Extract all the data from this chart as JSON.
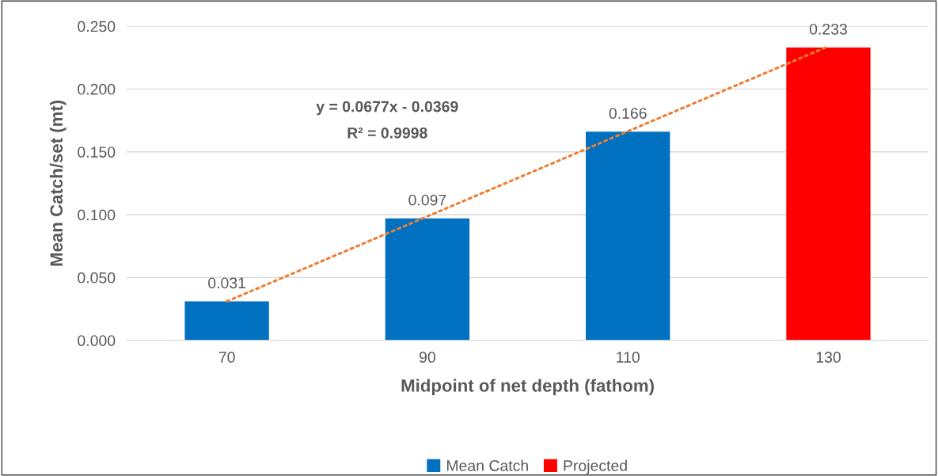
{
  "chart_data": {
    "type": "bar",
    "xlabel": "Midpoint of net depth (fathom)",
    "ylabel": "Mean Catch/set (mt)",
    "categories": [
      "70",
      "90",
      "110",
      "130"
    ],
    "series": [
      {
        "name": "Mean Catch",
        "color": "#0070c0",
        "values": [
          0.031,
          0.097,
          0.166,
          null
        ],
        "value_labels": [
          "0.031",
          "0.097",
          "0.166",
          null
        ]
      },
      {
        "name": "Projected",
        "color": "#ff0000",
        "values": [
          null,
          null,
          null,
          0.233
        ],
        "value_labels": [
          null,
          null,
          null,
          "0.233"
        ]
      },
      {
        "type": "line",
        "color": "#ed7d31",
        "line_style": "dotted",
        "x": [
          "70",
          "130"
        ],
        "values": [
          0.031,
          0.234
        ]
      }
    ],
    "annotations": [
      "y = 0.0677x - 0.0369",
      "R² = 0.9998"
    ],
    "ylim": [
      0,
      0.25
    ],
    "yticks": [
      {
        "value": 0,
        "label": "0.000"
      },
      {
        "value": 0.05,
        "label": "0.050"
      },
      {
        "value": 0.1,
        "label": "0.100"
      },
      {
        "value": 0.15,
        "label": "0.150"
      },
      {
        "value": 0.2,
        "label": "0.200"
      },
      {
        "value": 0.25,
        "label": "0.250"
      }
    ],
    "grid": "y",
    "legend": "bottom"
  }
}
